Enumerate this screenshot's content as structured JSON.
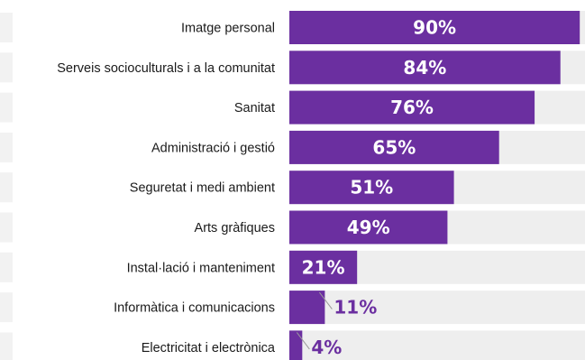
{
  "chart_data": {
    "type": "bar",
    "orientation": "horizontal",
    "categories": [
      "Imatge personal",
      "Serveis socioculturals i a la comunitat",
      "Sanitat",
      "Administració i gestió",
      "Seguretat i medi ambient",
      "Arts gràfiques",
      "Instal·lació i manteniment",
      "Informàtica i comunicacions",
      "Electricitat i electrònica"
    ],
    "values": [
      90,
      84,
      76,
      65,
      51,
      49,
      21,
      11,
      4
    ],
    "value_labels": [
      "90%",
      "84%",
      "76%",
      "65%",
      "51%",
      "49%",
      "21%",
      "11%",
      "4%"
    ],
    "xlim": [
      0,
      100
    ],
    "grid": false,
    "legend": "none",
    "title": "",
    "xlabel": "",
    "ylabel": "",
    "colors": {
      "bar": "#6b2fa0",
      "track": "#eeeeee",
      "label_inside": "#ffffff",
      "label_outside": "#6b2fa0",
      "leader": "#9a9a9a",
      "left_panel": "#f2f2f2"
    }
  }
}
